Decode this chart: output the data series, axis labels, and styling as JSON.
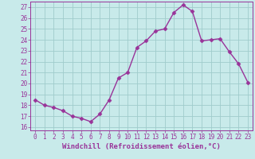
{
  "x": [
    0,
    1,
    2,
    3,
    4,
    5,
    6,
    7,
    8,
    9,
    10,
    11,
    12,
    13,
    14,
    15,
    16,
    17,
    18,
    19,
    20,
    21,
    22,
    23
  ],
  "y": [
    18.5,
    18.0,
    17.8,
    17.5,
    17.0,
    16.8,
    16.5,
    17.2,
    18.5,
    20.5,
    21.0,
    23.3,
    23.9,
    24.8,
    25.0,
    26.5,
    27.2,
    26.6,
    23.9,
    24.0,
    24.1,
    22.9,
    21.8,
    20.1
  ],
  "color": "#993399",
  "bg_color": "#c8eaea",
  "grid_color": "#a0cccc",
  "ylim_min": 15.7,
  "ylim_max": 27.5,
  "xlim_min": -0.5,
  "xlim_max": 23.5,
  "yticks": [
    16,
    17,
    18,
    19,
    20,
    21,
    22,
    23,
    24,
    25,
    26,
    27
  ],
  "xticks": [
    0,
    1,
    2,
    3,
    4,
    5,
    6,
    7,
    8,
    9,
    10,
    11,
    12,
    13,
    14,
    15,
    16,
    17,
    18,
    19,
    20,
    21,
    22,
    23
  ],
  "xlabel": "Windchill (Refroidissement éolien,°C)",
  "marker": "D",
  "linewidth": 1.0,
  "markersize": 2.5,
  "tick_fontsize": 5.5,
  "xlabel_fontsize": 6.5
}
